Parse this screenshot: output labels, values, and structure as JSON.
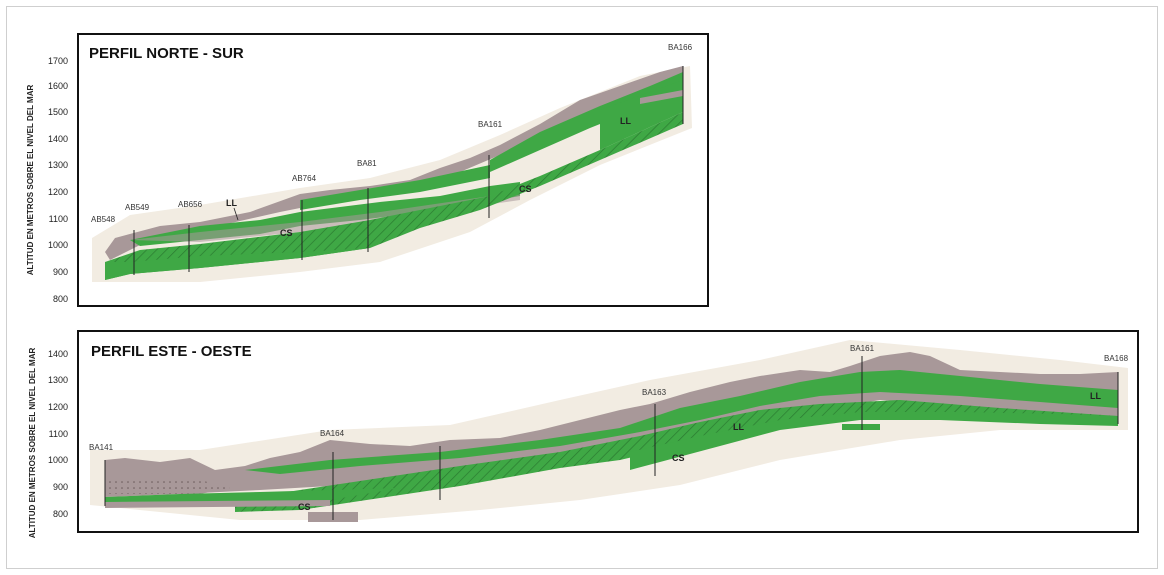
{
  "panels": [
    {
      "title": "PERFIL NORTE - SUR",
      "ylabel": "ALTITUD EN METROS SOBRE EL NIVEL DEL MAR",
      "yticks": [
        "1700",
        "1600",
        "1500",
        "1400",
        "1300",
        "1200",
        "1100",
        "1000",
        "900",
        "800"
      ],
      "boreholes": [
        "AB548",
        "AB549",
        "AB656",
        "AB764",
        "BA81",
        "BA161",
        "BA166"
      ],
      "units": [
        "LL",
        "CS",
        "CS",
        "LL"
      ]
    },
    {
      "title": "PERFIL ESTE - OESTE",
      "ylabel": "ALTITUD EN METROS SOBRE EL NIVEL DEL MAR",
      "yticks": [
        "1400",
        "1300",
        "1200",
        "1100",
        "1000",
        "900",
        "800"
      ],
      "boreholes": [
        "BA141",
        "BA164",
        "BA163",
        "BA161",
        "BA168"
      ],
      "units": [
        "CS",
        "CS",
        "LL",
        "LL"
      ]
    }
  ],
  "colors": {
    "green": "#3fa845",
    "brown": "#a89899",
    "halo": "#f2ece2",
    "frame": "#111111"
  }
}
